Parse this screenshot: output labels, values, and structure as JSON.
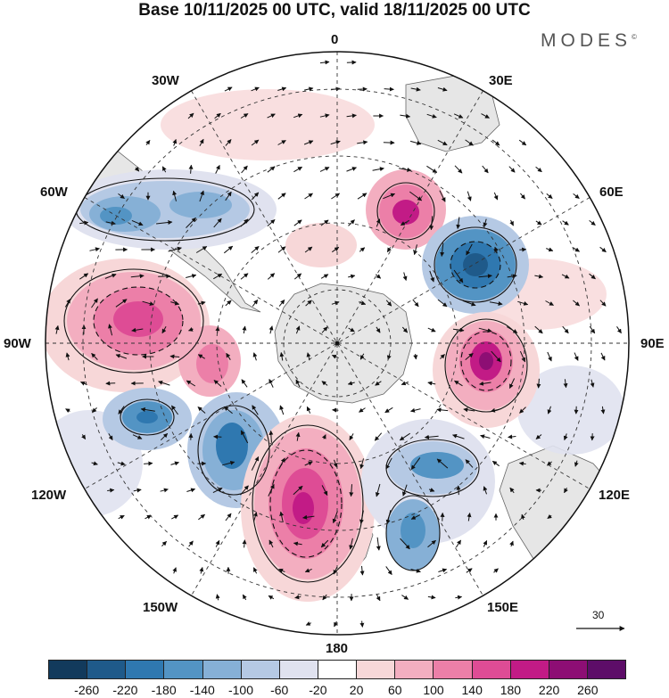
{
  "title": "Base 10/11/2025 00 UTC, valid 18/11/2025 00 UTC",
  "brand": "MODES",
  "brand_mark": "©",
  "longitude_labels": {
    "lon_0": "0",
    "lon_30e": "30E",
    "lon_60e": "60E",
    "lon_90e": "90E",
    "lon_120e": "120E",
    "lon_150e": "150E",
    "lon_180": "180",
    "lon_150w": "150W",
    "lon_120w": "120W",
    "lon_90w": "90W",
    "lon_60w": "60W",
    "lon_30w": "30W"
  },
  "vector_reference": {
    "label": "30",
    "value": 30
  },
  "colorbar": {
    "ticks": [
      "-260",
      "-220",
      "-180",
      "-140",
      "-100",
      "-60",
      "-20",
      "20",
      "60",
      "100",
      "140",
      "180",
      "220",
      "260"
    ],
    "colors": [
      "#123a5c",
      "#1f5a8a",
      "#2f78b0",
      "#5394c4",
      "#86b0d6",
      "#b5c9e4",
      "#e0e2ef",
      "#ffffff",
      "#f7d7d8",
      "#f3aec0",
      "#ec7fa8",
      "#de4c95",
      "#c21b86",
      "#8d0e74",
      "#5d0d68"
    ]
  },
  "colors": {
    "land": "#e6e6e6",
    "frame": "#111111",
    "grid": "#333333"
  }
}
